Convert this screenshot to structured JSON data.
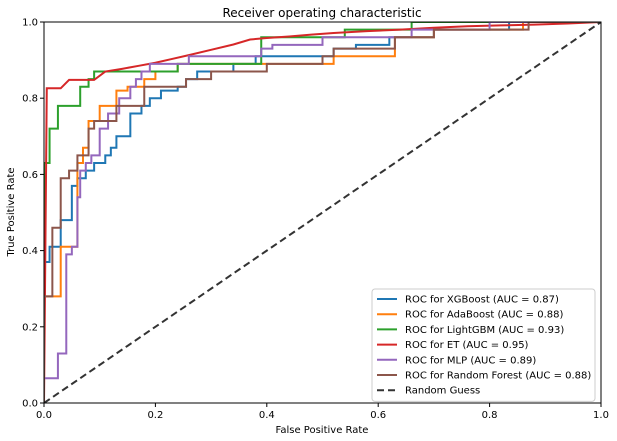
{
  "chart_data": {
    "type": "line",
    "title": "Receiver operating characteristic",
    "xlabel": "False Positive Rate",
    "ylabel": "True Positive Rate",
    "xlim": [
      0,
      1
    ],
    "ylim": [
      0,
      1
    ],
    "xticks": [
      "0.0",
      "0.2",
      "0.4",
      "0.6",
      "0.8",
      "1.0"
    ],
    "yticks": [
      "0.0",
      "0.2",
      "0.4",
      "0.6",
      "0.8",
      "1.0"
    ],
    "grid": false,
    "legend_position": "lower-right",
    "series": [
      {
        "name": "ROC for XGBoost (AUC = 0.87)",
        "color": "#1f77b4",
        "style": "solid",
        "x": [
          0,
          0,
          0.01,
          0.01,
          0.03,
          0.03,
          0.05,
          0.05,
          0.06,
          0.06,
          0.075,
          0.075,
          0.09,
          0.09,
          0.11,
          0.11,
          0.12,
          0.12,
          0.13,
          0.13,
          0.155,
          0.155,
          0.175,
          0.175,
          0.19,
          0.19,
          0.21,
          0.21,
          0.24,
          0.24,
          0.255,
          0.255,
          0.275,
          0.275,
          0.34,
          0.34,
          0.38,
          0.38,
          0.52,
          0.52,
          0.56,
          0.56,
          0.62,
          0.62,
          0.7,
          0.7,
          0.835,
          0.835,
          1.0
        ],
        "y": [
          0,
          0.37,
          0.37,
          0.41,
          0.41,
          0.48,
          0.48,
          0.57,
          0.57,
          0.59,
          0.59,
          0.61,
          0.61,
          0.63,
          0.63,
          0.65,
          0.65,
          0.67,
          0.67,
          0.7,
          0.7,
          0.76,
          0.76,
          0.78,
          0.78,
          0.8,
          0.8,
          0.82,
          0.82,
          0.83,
          0.83,
          0.85,
          0.85,
          0.87,
          0.87,
          0.89,
          0.89,
          0.91,
          0.91,
          0.93,
          0.93,
          0.94,
          0.94,
          0.96,
          0.96,
          0.98,
          0.98,
          1.0,
          1.0
        ]
      },
      {
        "name": "ROC for AdaBoost (AUC = 0.88)",
        "color": "#ff7f0e",
        "style": "solid",
        "x": [
          0,
          0,
          0.03,
          0.03,
          0.06,
          0.06,
          0.07,
          0.07,
          0.08,
          0.08,
          0.1,
          0.1,
          0.13,
          0.13,
          0.15,
          0.15,
          0.18,
          0.18,
          0.2,
          0.2,
          0.24,
          0.24,
          0.27,
          0.27,
          0.35,
          0.35,
          0.52,
          0.52,
          0.63,
          0.63,
          0.7,
          0.7,
          0.86,
          0.86,
          1.0
        ],
        "y": [
          0,
          0.28,
          0.28,
          0.41,
          0.41,
          0.63,
          0.63,
          0.67,
          0.67,
          0.74,
          0.74,
          0.78,
          0.78,
          0.82,
          0.82,
          0.83,
          0.83,
          0.85,
          0.85,
          0.87,
          0.87,
          0.89,
          0.89,
          0.89,
          0.89,
          0.89,
          0.89,
          0.91,
          0.91,
          0.96,
          0.96,
          0.98,
          0.98,
          1.0,
          1.0
        ]
      },
      {
        "name": "ROC for LightGBM (AUC = 0.93)",
        "color": "#2ca02c",
        "style": "solid",
        "x": [
          0,
          0,
          0.01,
          0.01,
          0.025,
          0.025,
          0.065,
          0.065,
          0.08,
          0.08,
          0.09,
          0.09,
          0.18,
          0.18,
          0.24,
          0.24,
          0.265,
          0.265,
          0.39,
          0.39,
          0.52,
          0.52,
          0.54,
          0.54,
          0.66,
          0.66,
          1.0
        ],
        "y": [
          0,
          0.63,
          0.63,
          0.72,
          0.72,
          0.78,
          0.78,
          0.83,
          0.83,
          0.85,
          0.85,
          0.87,
          0.87,
          0.87,
          0.87,
          0.89,
          0.89,
          0.89,
          0.89,
          0.96,
          0.96,
          0.96,
          0.96,
          0.98,
          0.98,
          1.0,
          1.0
        ]
      },
      {
        "name": "ROC for ET (AUC = 0.95)",
        "color": "#d62728",
        "style": "solid",
        "x": [
          0,
          0.005,
          0.01,
          0.03,
          0.045,
          0.065,
          0.09,
          0.11,
          0.14,
          0.17,
          0.2,
          0.23,
          0.26,
          0.3,
          0.34,
          0.37,
          0.4,
          0.44,
          0.48,
          0.52,
          0.58,
          0.64,
          0.7,
          0.76,
          0.82,
          0.88,
          0.94,
          1.0
        ],
        "y": [
          0,
          0.826,
          0.826,
          0.826,
          0.848,
          0.848,
          0.848,
          0.87,
          0.877,
          0.885,
          0.893,
          0.903,
          0.913,
          0.927,
          0.941,
          0.954,
          0.958,
          0.962,
          0.967,
          0.971,
          0.976,
          0.98,
          0.985,
          0.989,
          0.991,
          0.993,
          0.996,
          1.0
        ]
      },
      {
        "name": "ROC for MLP (AUC = 0.89)",
        "color": "#9467bd",
        "style": "solid",
        "x": [
          0,
          0,
          0.025,
          0.025,
          0.04,
          0.04,
          0.05,
          0.05,
          0.06,
          0.06,
          0.065,
          0.065,
          0.075,
          0.075,
          0.085,
          0.085,
          0.1,
          0.1,
          0.115,
          0.115,
          0.135,
          0.135,
          0.155,
          0.155,
          0.165,
          0.165,
          0.175,
          0.175,
          0.19,
          0.19,
          0.26,
          0.26,
          0.34,
          0.34,
          0.39,
          0.39,
          0.41,
          0.41,
          0.5,
          0.5,
          0.66,
          0.66,
          0.8,
          0.8,
          1.0
        ],
        "y": [
          0,
          0.065,
          0.065,
          0.13,
          0.13,
          0.39,
          0.39,
          0.41,
          0.41,
          0.54,
          0.54,
          0.61,
          0.61,
          0.63,
          0.63,
          0.65,
          0.65,
          0.72,
          0.72,
          0.76,
          0.76,
          0.8,
          0.8,
          0.83,
          0.83,
          0.85,
          0.85,
          0.87,
          0.87,
          0.89,
          0.89,
          0.91,
          0.91,
          0.91,
          0.91,
          0.93,
          0.93,
          0.94,
          0.94,
          0.96,
          0.96,
          0.98,
          0.98,
          1.0,
          1.0
        ]
      },
      {
        "name": "ROC for Random Forest (AUC = 0.88)",
        "color": "#8c564b",
        "style": "solid",
        "x": [
          0,
          0,
          0.015,
          0.015,
          0.03,
          0.03,
          0.045,
          0.045,
          0.06,
          0.06,
          0.08,
          0.08,
          0.09,
          0.09,
          0.13,
          0.13,
          0.18,
          0.18,
          0.255,
          0.255,
          0.3,
          0.3,
          0.4,
          0.4,
          0.5,
          0.5,
          0.52,
          0.52,
          0.63,
          0.63,
          0.7,
          0.7,
          0.79,
          0.79,
          0.87,
          0.87,
          1.0
        ],
        "y": [
          0,
          0.28,
          0.28,
          0.46,
          0.46,
          0.59,
          0.59,
          0.61,
          0.61,
          0.65,
          0.65,
          0.72,
          0.72,
          0.74,
          0.74,
          0.78,
          0.78,
          0.83,
          0.83,
          0.85,
          0.85,
          0.87,
          0.87,
          0.89,
          0.89,
          0.91,
          0.91,
          0.93,
          0.93,
          0.96,
          0.96,
          0.98,
          0.98,
          0.98,
          0.98,
          1.0,
          1.0
        ]
      },
      {
        "name": "Random Guess",
        "color": "#333333",
        "style": "dashed",
        "x": [
          0,
          1
        ],
        "y": [
          0,
          1
        ]
      }
    ]
  }
}
